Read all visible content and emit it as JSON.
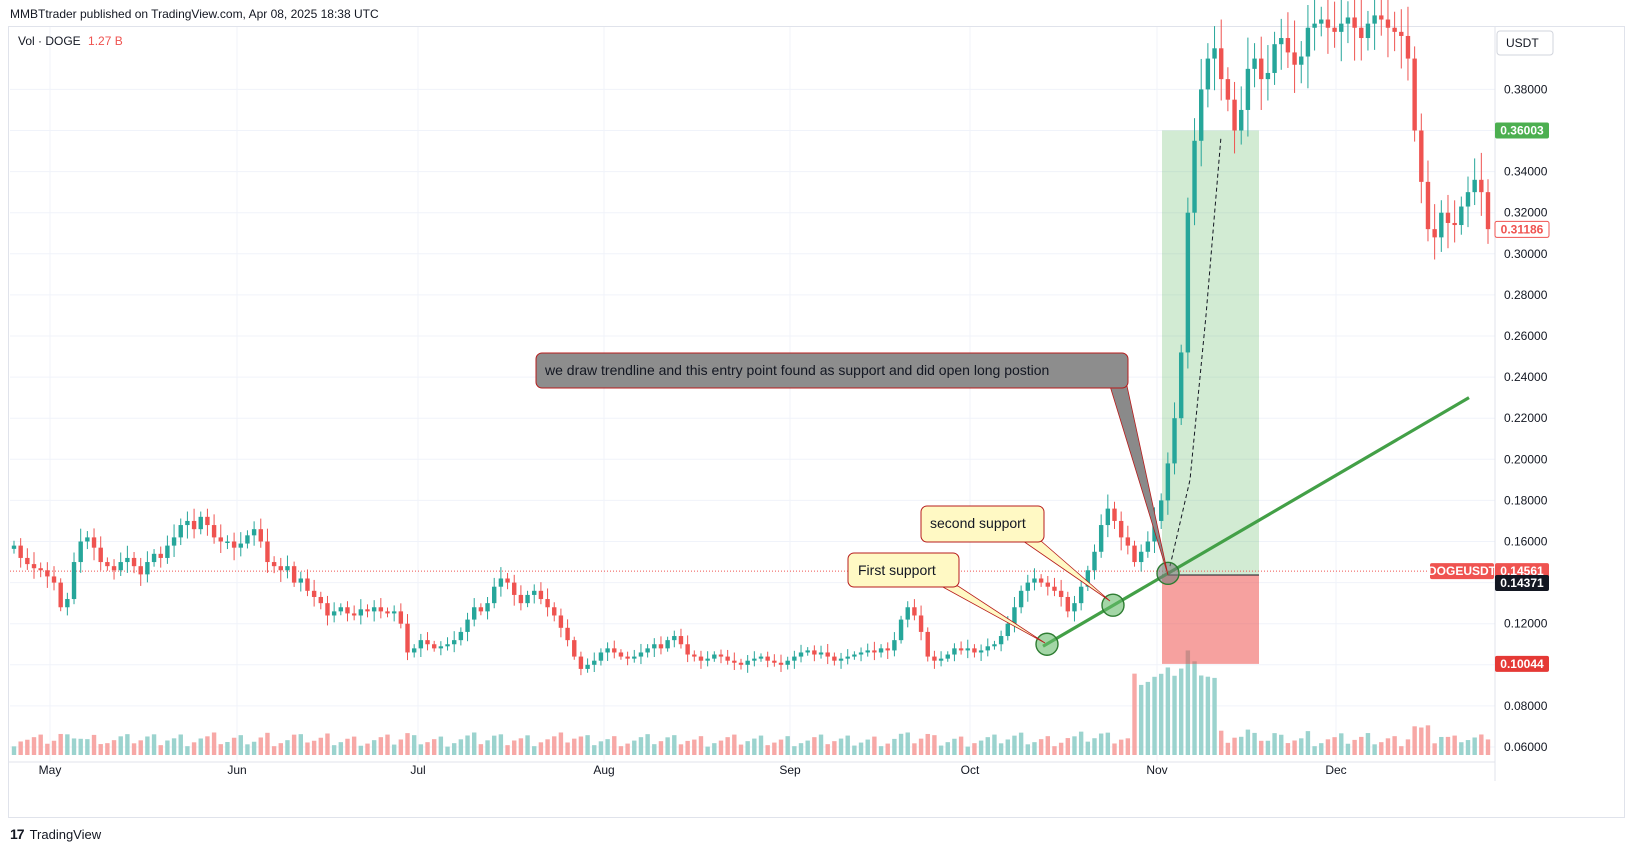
{
  "header": {
    "published_by": "MMBTtrader published on TradingView.com, Apr 08, 2025 18:38 UTC"
  },
  "volume_legend": {
    "label": "Vol · DOGE",
    "value": "1.27 B"
  },
  "footer": {
    "brand": "TradingView"
  },
  "colors": {
    "up": "#26a69a",
    "down": "#ef5350",
    "trendline": "#43a047",
    "profit_zone": "#4caf50",
    "loss_zone": "#ef5350",
    "volume_up": "#9bd3ce",
    "volume_down": "#f7a8a6"
  },
  "chart_data": {
    "type": "candlestick",
    "symbol": "DOGEUSDT",
    "price_axis": {
      "unit": "USDT",
      "ticks": [
        "0.38000",
        "0.36000",
        "0.34000",
        "0.32000",
        "0.30000",
        "0.28000",
        "0.26000",
        "0.24000",
        "0.22000",
        "0.20000",
        "0.18000",
        "0.16000",
        "0.14000",
        "0.12000",
        "0.10000",
        "0.08000",
        "0.06000"
      ]
    },
    "time_axis": {
      "labels": [
        "May",
        "Jun",
        "Jul",
        "Aug",
        "Sep",
        "Oct",
        "Nov",
        "Dec"
      ]
    },
    "price_badges": [
      {
        "label": "0.36003",
        "style": "target"
      },
      {
        "label": "0.31186",
        "style": "last"
      },
      {
        "label": "DOGEUSDT",
        "style": "symbol"
      },
      {
        "label": "0.14561",
        "style": "symbol-price"
      },
      {
        "label": "0.14371",
        "style": "entry"
      },
      {
        "label": "0.10044",
        "style": "stop"
      }
    ],
    "position": {
      "entry": 0.14371,
      "target": 0.36003,
      "stop": 0.10044,
      "start": "Nov",
      "side": "long"
    },
    "trendline": [
      {
        "x": "Oct 14",
        "y": 0.109
      },
      {
        "x": "Dec 20",
        "y": 0.23
      }
    ],
    "annotations": [
      {
        "text": "we draw trendline and this entry point found as support and did open long postion"
      },
      {
        "text": "second support"
      },
      {
        "text": "First support"
      }
    ],
    "closes": [
      0.158,
      0.152,
      0.149,
      0.147,
      0.146,
      0.143,
      0.14,
      0.128,
      0.132,
      0.15,
      0.16,
      0.162,
      0.157,
      0.15,
      0.148,
      0.146,
      0.15,
      0.152,
      0.148,
      0.144,
      0.15,
      0.154,
      0.152,
      0.158,
      0.162,
      0.168,
      0.17,
      0.166,
      0.172,
      0.168,
      0.162,
      0.16,
      0.16,
      0.157,
      0.159,
      0.163,
      0.166,
      0.16,
      0.15,
      0.148,
      0.146,
      0.148,
      0.14,
      0.142,
      0.136,
      0.133,
      0.13,
      0.124,
      0.126,
      0.128,
      0.125,
      0.124,
      0.127,
      0.126,
      0.128,
      0.126,
      0.125,
      0.126,
      0.12,
      0.106,
      0.108,
      0.112,
      0.11,
      0.108,
      0.109,
      0.11,
      0.112,
      0.116,
      0.122,
      0.128,
      0.126,
      0.13,
      0.138,
      0.142,
      0.14,
      0.134,
      0.13,
      0.134,
      0.136,
      0.132,
      0.128,
      0.124,
      0.118,
      0.112,
      0.104,
      0.098,
      0.1,
      0.102,
      0.106,
      0.108,
      0.106,
      0.104,
      0.103,
      0.104,
      0.106,
      0.108,
      0.11,
      0.108,
      0.112,
      0.114,
      0.11,
      0.105,
      0.104,
      0.102,
      0.103,
      0.105,
      0.104,
      0.102,
      0.101,
      0.1,
      0.102,
      0.103,
      0.104,
      0.102,
      0.101,
      0.1,
      0.102,
      0.104,
      0.106,
      0.107,
      0.105,
      0.106,
      0.104,
      0.102,
      0.103,
      0.104,
      0.105,
      0.106,
      0.107,
      0.106,
      0.108,
      0.107,
      0.112,
      0.122,
      0.128,
      0.124,
      0.116,
      0.104,
      0.102,
      0.103,
      0.105,
      0.108,
      0.107,
      0.108,
      0.106,
      0.107,
      0.109,
      0.11,
      0.114,
      0.12,
      0.128,
      0.136,
      0.14,
      0.142,
      0.14,
      0.138,
      0.136,
      0.133,
      0.126,
      0.13,
      0.138,
      0.146,
      0.155,
      0.168,
      0.176,
      0.17,
      0.162,
      0.158,
      0.15,
      0.155,
      0.16,
      0.17,
      0.18,
      0.198,
      0.22,
      0.252,
      0.32,
      0.355,
      0.38,
      0.395,
      0.4,
      0.385,
      0.375,
      0.36,
      0.37,
      0.39,
      0.395,
      0.385,
      0.388,
      0.402,
      0.405,
      0.398,
      0.392,
      0.396,
      0.41,
      0.412,
      0.414,
      0.41,
      0.408,
      0.412,
      0.415,
      0.41,
      0.405,
      0.412,
      0.416,
      0.414,
      0.41,
      0.408,
      0.406,
      0.395,
      0.36,
      0.335,
      0.312,
      0.308,
      0.32,
      0.315,
      0.314,
      0.323,
      0.33,
      0.336,
      0.33,
      0.312
    ],
    "markers": [
      "Nov"
    ]
  }
}
